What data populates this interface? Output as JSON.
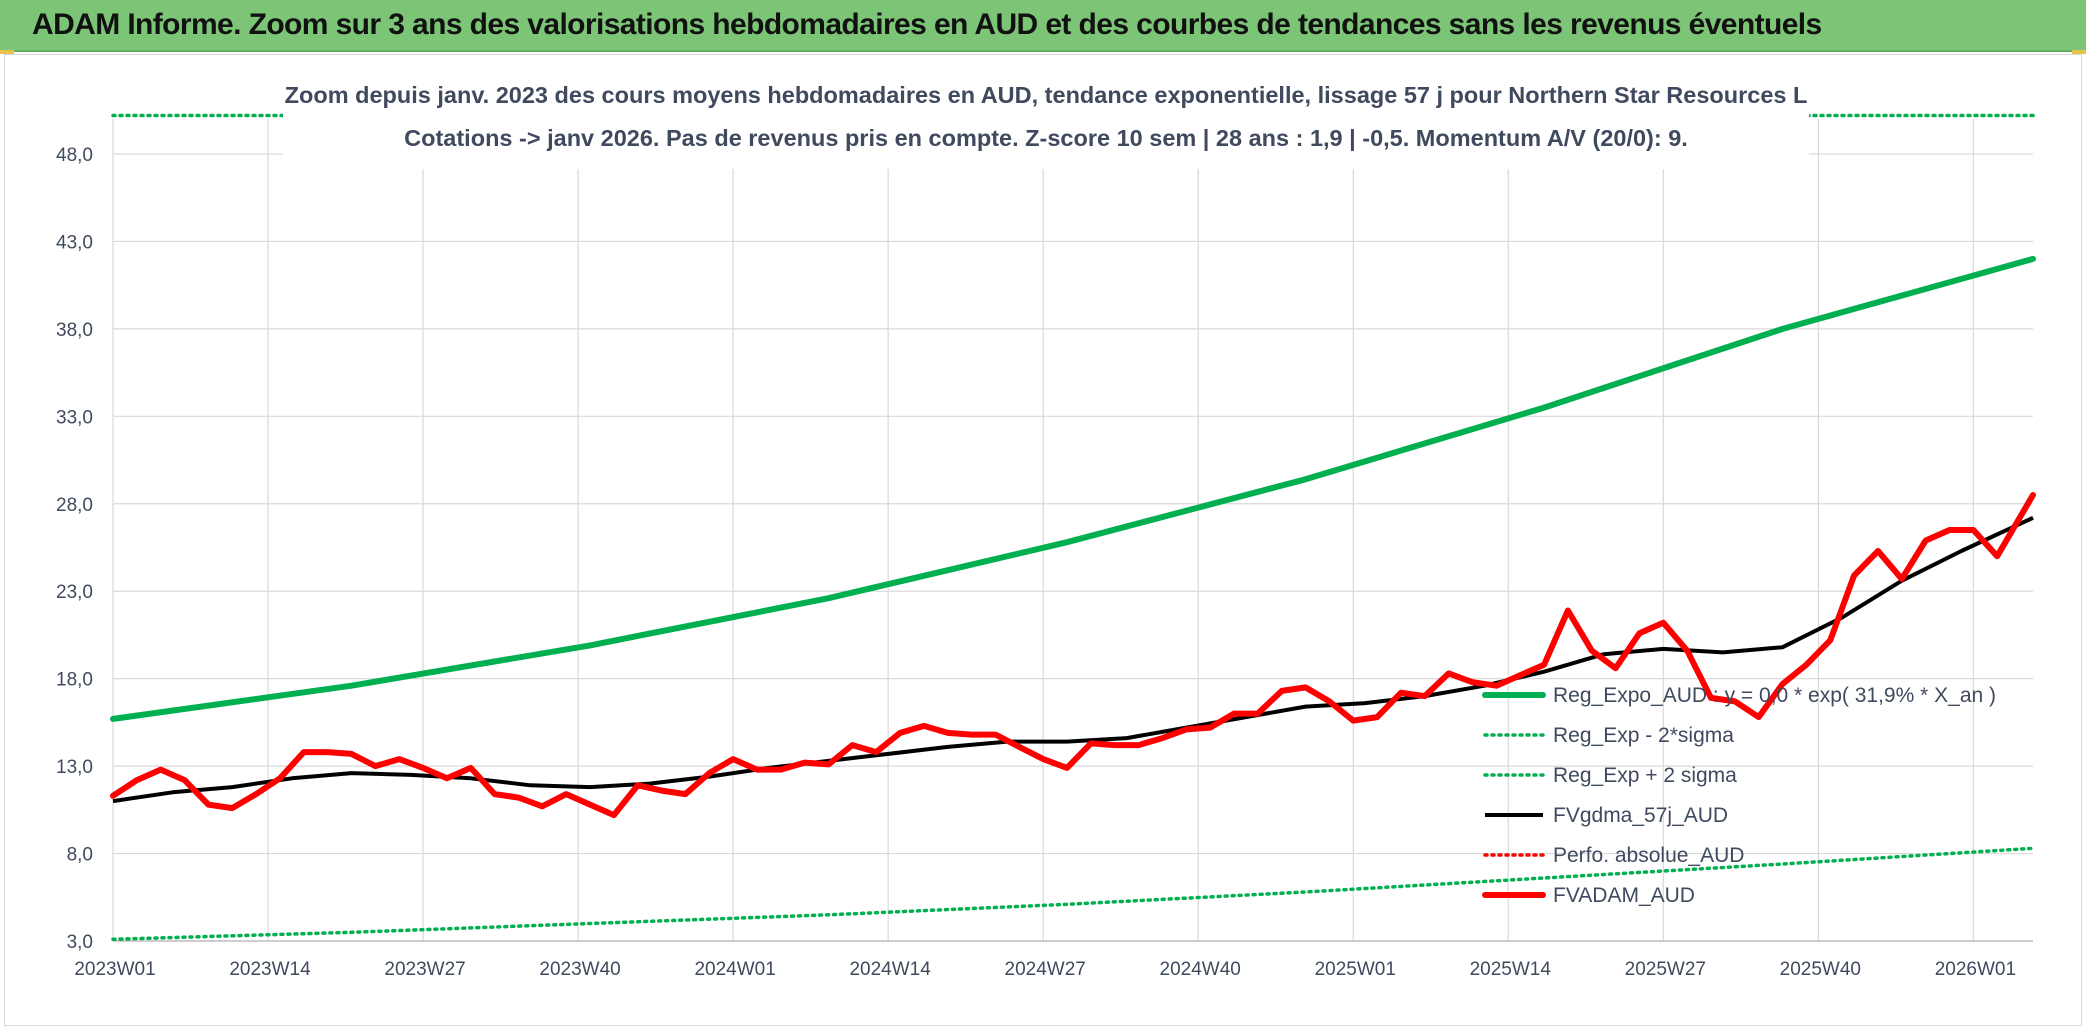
{
  "banner": {
    "title": "ADAM Informe. Zoom sur 3 ans des valorisations hebdomadaires en AUD et des courbes de tendances sans les revenus éventuels"
  },
  "colors": {
    "banner_bg": "#7cc576",
    "green": "#00b050",
    "black": "#000000",
    "red": "#ff0000",
    "grid": "#d9d9d9",
    "text": "#404a5e"
  },
  "chart_data": {
    "type": "line",
    "title_line1": "Zoom depuis janv. 2023 des cours moyens hebdomadaires en AUD, tendance exponentielle, lissage 57 j pour Northern Star Resources L",
    "title_line2": "Cotations -> janv 2026. Pas de revenus pris en compte. Z-score 10 sem | 28 ans : 1,9 | -0,5. Momentum A/V (20/0): 9.",
    "xlabel": "",
    "ylabel": "",
    "ylim": [
      3,
      50
    ],
    "yticks": [
      "48,0",
      "43,0",
      "38,0",
      "33,0",
      "28,0",
      "23,0",
      "18,0",
      "13,0",
      "8,0",
      "3,0"
    ],
    "ytick_values": [
      48,
      43,
      38,
      33,
      28,
      23,
      18,
      13,
      8,
      3
    ],
    "xticks": [
      "2023W01",
      "2023W14",
      "2023W27",
      "2023W40",
      "2024W01",
      "2024W14",
      "2024W27",
      "2024W40",
      "2025W01",
      "2025W14",
      "2025W27",
      "2025W40",
      "2026W01"
    ],
    "xtick_weeks": [
      0,
      13,
      26,
      39,
      52,
      65,
      78,
      91,
      104,
      117,
      130,
      143,
      156
    ],
    "x_range_weeks": [
      0,
      161
    ],
    "legend_position": "bottom-right",
    "series": [
      {
        "name": "Reg_Expo_AUD : y = 0,0 * exp( 31,9% *  X_an )",
        "style": "solid-thick",
        "color": "#00b050",
        "x": [
          0,
          20,
          40,
          60,
          80,
          100,
          120,
          140,
          161
        ],
        "values": [
          15.7,
          17.6,
          19.9,
          22.6,
          25.8,
          29.4,
          33.5,
          38.0,
          42.0
        ]
      },
      {
        "name": "Reg_Exp - 2*sigma",
        "style": "dotted",
        "color": "#00b050",
        "x": [
          0,
          20,
          40,
          60,
          80,
          100,
          120,
          140,
          161
        ],
        "values": [
          3.1,
          3.5,
          4.0,
          4.5,
          5.1,
          5.8,
          6.6,
          7.4,
          8.3
        ]
      },
      {
        "name": "Reg_Exp + 2 sigma",
        "style": "dotted",
        "color": "#00b050",
        "x": [
          0,
          20,
          40,
          60,
          80,
          100,
          120,
          140,
          161
        ],
        "values": [
          50.2,
          50.2,
          50.2,
          50.2,
          50.2,
          50.2,
          50.2,
          50.2,
          50.2
        ]
      },
      {
        "name": "FVgdma_57j_AUD",
        "style": "solid",
        "color": "#000000",
        "x": [
          0,
          5,
          10,
          15,
          20,
          25,
          30,
          35,
          40,
          45,
          50,
          55,
          60,
          65,
          70,
          75,
          80,
          85,
          90,
          95,
          100,
          105,
          110,
          115,
          120,
          125,
          130,
          135,
          140,
          145,
          150,
          155,
          161
        ],
        "values": [
          11.0,
          11.5,
          11.8,
          12.3,
          12.6,
          12.5,
          12.3,
          11.9,
          11.8,
          12.0,
          12.4,
          12.9,
          13.3,
          13.7,
          14.1,
          14.4,
          14.4,
          14.6,
          15.2,
          15.8,
          16.4,
          16.6,
          17.0,
          17.6,
          18.4,
          19.4,
          19.7,
          19.5,
          19.8,
          21.5,
          23.6,
          25.3,
          27.2
        ]
      },
      {
        "name": "Perfo. absolue_AUD",
        "style": "dotted",
        "color": "#ff0000",
        "x": [],
        "values": []
      },
      {
        "name": "FVADAM_AUD",
        "style": "solid-thick",
        "color": "#ff0000",
        "x": [
          0,
          2,
          4,
          6,
          8,
          10,
          12,
          14,
          16,
          18,
          20,
          22,
          24,
          26,
          28,
          30,
          32,
          34,
          36,
          38,
          40,
          42,
          44,
          46,
          48,
          50,
          52,
          54,
          56,
          58,
          60,
          62,
          64,
          66,
          68,
          70,
          72,
          74,
          76,
          78,
          80,
          82,
          84,
          86,
          88,
          90,
          92,
          94,
          96,
          98,
          100,
          102,
          104,
          106,
          108,
          110,
          112,
          114,
          116,
          118,
          120,
          122,
          124,
          126,
          128,
          130,
          132,
          134,
          136,
          138,
          140,
          142,
          144,
          146,
          148,
          150,
          152,
          154,
          156,
          158,
          161
        ],
        "values": [
          11.3,
          12.2,
          12.8,
          12.2,
          10.8,
          10.6,
          11.4,
          12.3,
          13.8,
          13.8,
          13.7,
          13.0,
          13.4,
          12.9,
          12.3,
          12.9,
          11.4,
          11.2,
          10.7,
          11.4,
          10.8,
          10.2,
          11.9,
          11.6,
          11.4,
          12.6,
          13.4,
          12.8,
          12.8,
          13.2,
          13.1,
          14.2,
          13.8,
          14.9,
          15.3,
          14.9,
          14.8,
          14.8,
          14.1,
          13.4,
          12.9,
          14.3,
          14.2,
          14.2,
          14.6,
          15.1,
          15.2,
          16.0,
          16.0,
          17.3,
          17.5,
          16.7,
          15.6,
          15.8,
          17.2,
          17.0,
          18.3,
          17.8,
          17.6,
          18.2,
          18.8,
          21.9,
          19.6,
          18.6,
          20.6,
          21.2,
          19.6,
          16.9,
          16.7,
          15.8,
          17.7,
          18.8,
          20.2,
          23.9,
          25.3,
          23.7,
          25.9,
          26.5,
          26.5,
          25.0,
          28.5
        ]
      }
    ]
  }
}
